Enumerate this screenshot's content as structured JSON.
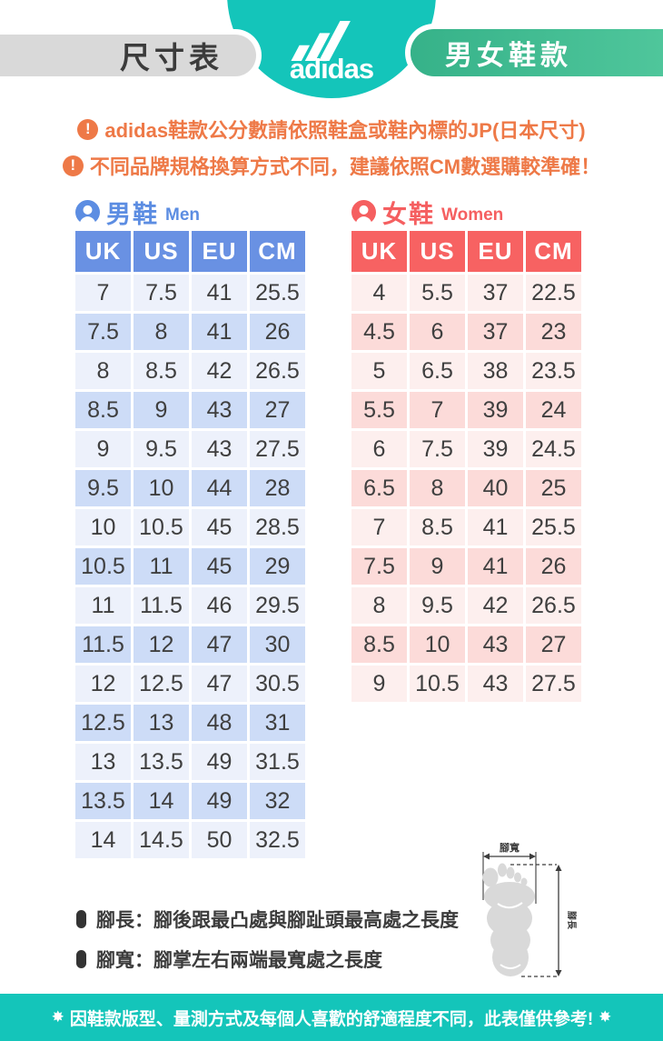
{
  "header": {
    "size_label": "尺寸表",
    "brand": "adidas",
    "category_label": "男女鞋款"
  },
  "notices": [
    {
      "icon": "!",
      "text": "adidas鞋款公分數請依照鞋盒或鞋內標的JP(日本尺寸)"
    },
    {
      "icon": "!",
      "text": "不同品牌規格換算方式不同，建議依照CM數選購較準確！"
    }
  ],
  "tables": {
    "men": {
      "title_zh": "男鞋",
      "title_en": "Men",
      "columns": [
        "UK",
        "US",
        "EU",
        "CM"
      ],
      "rows": [
        [
          "7",
          "7.5",
          "41",
          "25.5"
        ],
        [
          "7.5",
          "8",
          "41",
          "26"
        ],
        [
          "8",
          "8.5",
          "42",
          "26.5"
        ],
        [
          "8.5",
          "9",
          "43",
          "27"
        ],
        [
          "9",
          "9.5",
          "43",
          "27.5"
        ],
        [
          "9.5",
          "10",
          "44",
          "28"
        ],
        [
          "10",
          "10.5",
          "45",
          "28.5"
        ],
        [
          "10.5",
          "11",
          "45",
          "29"
        ],
        [
          "11",
          "11.5",
          "46",
          "29.5"
        ],
        [
          "11.5",
          "12",
          "47",
          "30"
        ],
        [
          "12",
          "12.5",
          "47",
          "30.5"
        ],
        [
          "12.5",
          "13",
          "48",
          "31"
        ],
        [
          "13",
          "13.5",
          "49",
          "31.5"
        ],
        [
          "13.5",
          "14",
          "49",
          "32"
        ],
        [
          "14",
          "14.5",
          "50",
          "32.5"
        ]
      ]
    },
    "women": {
      "title_zh": "女鞋",
      "title_en": "Women",
      "columns": [
        "UK",
        "US",
        "EU",
        "CM"
      ],
      "rows": [
        [
          "4",
          "5.5",
          "37",
          "22.5"
        ],
        [
          "4.5",
          "6",
          "37",
          "23"
        ],
        [
          "5",
          "6.5",
          "38",
          "23.5"
        ],
        [
          "5.5",
          "7",
          "39",
          "24"
        ],
        [
          "6",
          "7.5",
          "39",
          "24.5"
        ],
        [
          "6.5",
          "8",
          "40",
          "25"
        ],
        [
          "7",
          "8.5",
          "41",
          "25.5"
        ],
        [
          "7.5",
          "9",
          "41",
          "26"
        ],
        [
          "8",
          "9.5",
          "42",
          "26.5"
        ],
        [
          "8.5",
          "10",
          "43",
          "27"
        ],
        [
          "9",
          "10.5",
          "43",
          "27.5"
        ]
      ]
    }
  },
  "measure_notes": [
    {
      "text": "腳長：腳後跟最凸處與腳趾頭最高處之長度"
    },
    {
      "text": "腳寬：腳掌左右兩端最寬處之長度"
    }
  ],
  "diagram": {
    "width_label": "腳寬",
    "length_label": "腳長"
  },
  "footer": {
    "star": "✸",
    "text": "因鞋款版型、量測方式及每個人喜歡的舒適程度不同，此表僅供參考!"
  },
  "colors": {
    "teal": "#14c5ba",
    "green_pill": "#3fbc90",
    "gray_pill": "#d9d9d9",
    "warning_orange": "#ee7947",
    "men_blue": "#6991e3",
    "women_red": "#f76262"
  }
}
